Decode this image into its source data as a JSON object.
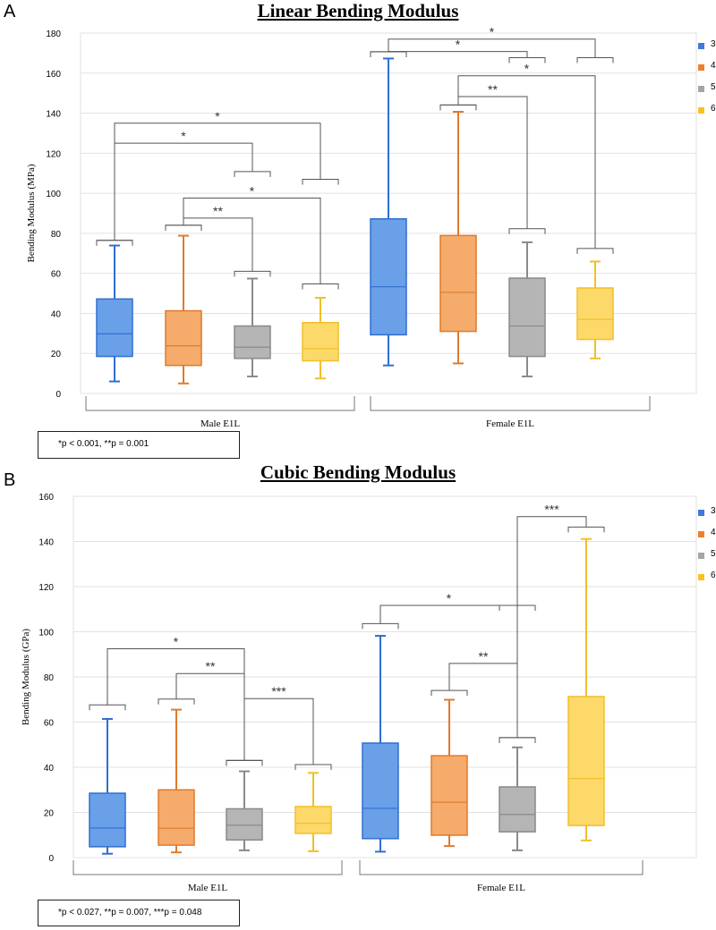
{
  "colors": {
    "3": {
      "fill": "#6aa0e8",
      "stroke": "#2e6fd0",
      "swatch": "#3e7bd6"
    },
    "4": {
      "fill": "#f4ab6c",
      "stroke": "#e07a2c",
      "swatch": "#ec7f2e"
    },
    "5": {
      "fill": "#b5b5b5",
      "stroke": "#8a8a8a",
      "swatch": "#a5a5a5"
    },
    "6": {
      "fill": "#fdd96a",
      "stroke": "#f2bf2a",
      "swatch": "#fbc122"
    },
    "bracket": "#555555"
  },
  "chart_data": [
    {
      "panel": "A",
      "type": "boxplot",
      "title": "Linear Bending Modulus",
      "ylabel": "Bending  Modulus (MPa)",
      "ylim": [
        0,
        180
      ],
      "yticks": [
        0,
        20,
        40,
        60,
        80,
        100,
        120,
        140,
        160,
        180
      ],
      "groups": [
        "Male E1L",
        "Female E1L"
      ],
      "legend": [
        "3",
        "4",
        "5",
        "6"
      ],
      "footnote": "*p < 0.001,    **p = 0.001",
      "boxes": [
        {
          "group": "Male E1L",
          "series": "3",
          "min": 6,
          "q1": 18.5,
          "median": 29.8,
          "q3": 47.2,
          "max": 73.9
        },
        {
          "group": "Male E1L",
          "series": "4",
          "min": 5,
          "q1": 14,
          "median": 23.8,
          "q3": 41.3,
          "max": 78.8
        },
        {
          "group": "Male E1L",
          "series": "5",
          "min": 8.5,
          "q1": 17.5,
          "median": 23.1,
          "q3": 33.7,
          "max": 57.4
        },
        {
          "group": "Male E1L",
          "series": "6",
          "min": 7.5,
          "q1": 16.3,
          "median": 22.4,
          "q3": 35.4,
          "max": 47.8
        },
        {
          "group": "Female E1L",
          "series": "3",
          "min": 14,
          "q1": 29.3,
          "median": 53.3,
          "q3": 87.2,
          "max": 167.3
        },
        {
          "group": "Female E1L",
          "series": "4",
          "min": 15,
          "q1": 31,
          "median": 50.5,
          "q3": 78.9,
          "max": 140.7
        },
        {
          "group": "Female E1L",
          "series": "5",
          "min": 8.5,
          "q1": 18.5,
          "median": 33.7,
          "q3": 57.6,
          "max": 75.5
        },
        {
          "group": "Female E1L",
          "series": "6",
          "min": 17.5,
          "q1": 27,
          "median": 37,
          "q3": 52.7,
          "max": 65.9
        }
      ],
      "comparisons": [
        {
          "a": 0,
          "b": 3,
          "y_left": 76.5,
          "y_right": 107,
          "y_top": 135,
          "label": "*"
        },
        {
          "a": 0,
          "b": 2,
          "y_left": 76.5,
          "y_right": 110.8,
          "y_top": 125,
          "label": "*"
        },
        {
          "a": 1,
          "b": 3,
          "y_left": 84,
          "y_right": 54.7,
          "y_top": 97.6,
          "label": "*"
        },
        {
          "a": 1,
          "b": 2,
          "y_left": 84,
          "y_right": 61,
          "y_top": 87.6,
          "label": "**"
        },
        {
          "a": 4,
          "b": 7,
          "y_left": 170.7,
          "y_right": 167.7,
          "y_top": 177,
          "label": "*"
        },
        {
          "a": 4,
          "b": 6,
          "y_left": 170.7,
          "y_right": 167.7,
          "y_top": 170.8,
          "label": "*"
        },
        {
          "a": 5,
          "b": 7,
          "y_left": 144.1,
          "y_right": 72.4,
          "y_top": 158.7,
          "label": "*"
        },
        {
          "a": 5,
          "b": 6,
          "y_left": 144.1,
          "y_right": 82.3,
          "y_top": 148.3,
          "label": "**"
        }
      ]
    },
    {
      "panel": "B",
      "type": "boxplot",
      "title": "Cubic Bending Modulus",
      "ylabel": "Bending  Modulus (GPa)",
      "ylim": [
        0,
        160
      ],
      "yticks": [
        0,
        20,
        40,
        60,
        80,
        100,
        120,
        140,
        160
      ],
      "groups": [
        "Male E1L",
        "Female E1L"
      ],
      "legend": [
        "3",
        "4",
        "5",
        "6"
      ],
      "footnote": "*p < 0.027,    **p = 0.007,    ***p = 0.048",
      "boxes": [
        {
          "group": "Male E1L",
          "series": "3",
          "min": 1.7,
          "q1": 4.8,
          "median": 13.1,
          "q3": 28.5,
          "max": 61.4
        },
        {
          "group": "Male E1L",
          "series": "4",
          "min": 2.3,
          "q1": 5.5,
          "median": 13,
          "q3": 30,
          "max": 65.5
        },
        {
          "group": "Male E1L",
          "series": "5",
          "min": 3.2,
          "q1": 7.8,
          "median": 14.3,
          "q3": 21.6,
          "max": 38.2
        },
        {
          "group": "Male E1L",
          "series": "6",
          "min": 2.8,
          "q1": 10.7,
          "median": 15.2,
          "q3": 22.6,
          "max": 37.5
        },
        {
          "group": "Female E1L",
          "series": "3",
          "min": 2.6,
          "q1": 8.4,
          "median": 21.8,
          "q3": 50.7,
          "max": 98.2
        },
        {
          "group": "Female E1L",
          "series": "4",
          "min": 5.1,
          "q1": 9.9,
          "median": 24.5,
          "q3": 45.1,
          "max": 69.9
        },
        {
          "group": "Female E1L",
          "series": "5",
          "min": 3.2,
          "q1": 11.4,
          "median": 19.1,
          "q3": 31.3,
          "max": 48.8
        },
        {
          "group": "Female E1L",
          "series": "6",
          "min": 7.6,
          "q1": 14.2,
          "median": 35,
          "q3": 71.3,
          "max": 141.1
        }
      ],
      "comparisons": [
        {
          "a": 0,
          "b": 2,
          "y_left": 67.6,
          "y_right": 43,
          "y_top": 92.5,
          "label": "*"
        },
        {
          "a": 1,
          "b": 2,
          "y_left": 70.2,
          "y_right": 43,
          "y_top": 81.5,
          "label": "**"
        },
        {
          "a": 2,
          "b": 3,
          "y_left": 43,
          "y_right": 41.2,
          "y_top": 70.4,
          "label": "***"
        },
        {
          "a": 4,
          "b": 6,
          "y_left": 103.6,
          "y_right": 53.1,
          "y_top": 111.7,
          "label": "*"
        },
        {
          "a": 5,
          "b": 6,
          "y_left": 74,
          "y_right": 53.1,
          "y_top": 86,
          "label": "**"
        },
        {
          "a": 6,
          "b": 7,
          "y_left": 111.7,
          "y_right": 146.4,
          "y_top": 151,
          "label": "***"
        }
      ]
    }
  ]
}
